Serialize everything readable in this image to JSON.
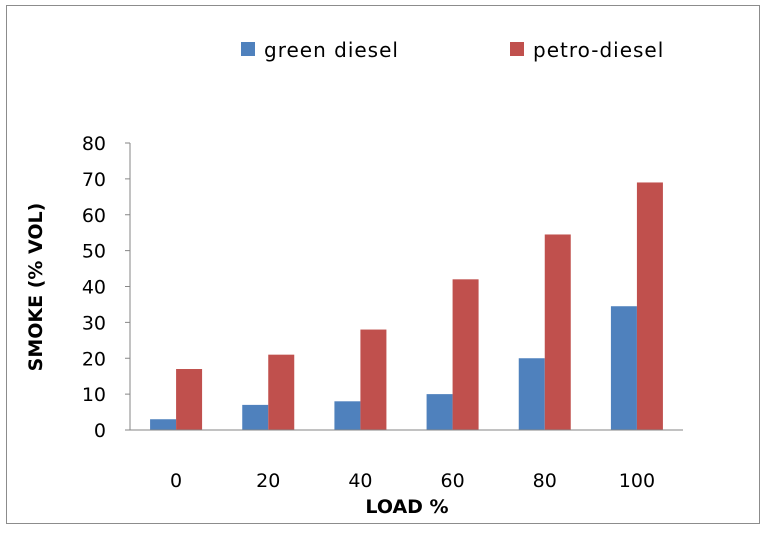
{
  "chart_data": {
    "type": "bar",
    "title": "",
    "xlabel": "LOAD %",
    "ylabel": "SMOKE (% VOL)",
    "categories": [
      "0",
      "20",
      "40",
      "60",
      "80",
      "100"
    ],
    "ylim": [
      0,
      80
    ],
    "yticks": [
      "0",
      "10",
      "20",
      "30",
      "40",
      "50",
      "60",
      "70",
      "80"
    ],
    "grid": false,
    "legend_position": "top",
    "series": [
      {
        "name": "green diesel",
        "color": "#4f81bd",
        "values": [
          3,
          7,
          8,
          10,
          20,
          34.5
        ]
      },
      {
        "name": "petro-diesel",
        "color": "#c0504d",
        "values": [
          17,
          21,
          28,
          42,
          54.5,
          69
        ]
      }
    ]
  }
}
